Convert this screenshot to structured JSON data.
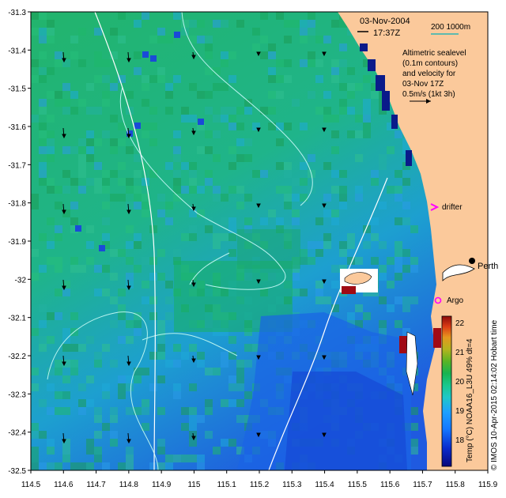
{
  "map": {
    "header": {
      "date": "03-Nov-2004",
      "time": "17:37Z"
    },
    "scale": {
      "label": "200  1000m"
    },
    "legend_note": [
      "Altimetric sealevel",
      "(0.1m contours)",
      "and velocity for",
      "03-Nov 17Z",
      "0.5m/s (1kt 3h)"
    ],
    "labels": {
      "drifter": "drifter",
      "perth": "Perth",
      "argo": "Argo"
    },
    "colorbar": {
      "title": "Temp (°C) NOAA16_L3U 49% dt=4",
      "ticks": [
        "22",
        "21",
        "20",
        "19",
        "18"
      ],
      "colors": [
        "#08087a",
        "#0a2acc",
        "#1478ff",
        "#1ea0ff",
        "#1ec8c8",
        "#19c88c",
        "#19b450",
        "#5ab424",
        "#b4b41e",
        "#e6961e",
        "#dc3c14",
        "#8c0a0a"
      ]
    },
    "credit": "© IMOS 10-Apr-2015 02:14:02 Hobart time",
    "x_ticks": [
      "114.5",
      "114.6",
      "114.7",
      "114.8",
      "114.9",
      "115",
      "115.1",
      "115.2",
      "115.3",
      "115.4",
      "115.5",
      "115.6",
      "115.7",
      "115.8",
      "115.9"
    ],
    "y_ticks": [
      "-31.3",
      "-31.4",
      "-31.5",
      "-31.6",
      "-31.7",
      "-31.8",
      "-31.9",
      "-32",
      "-32.1",
      "-32.2",
      "-32.3",
      "-32.4",
      "-32.5"
    ],
    "colors": {
      "land": "#fbc99b",
      "contour": "#b8f3ef",
      "isobath": "#ffffff",
      "marker": "#ff00ff"
    }
  }
}
